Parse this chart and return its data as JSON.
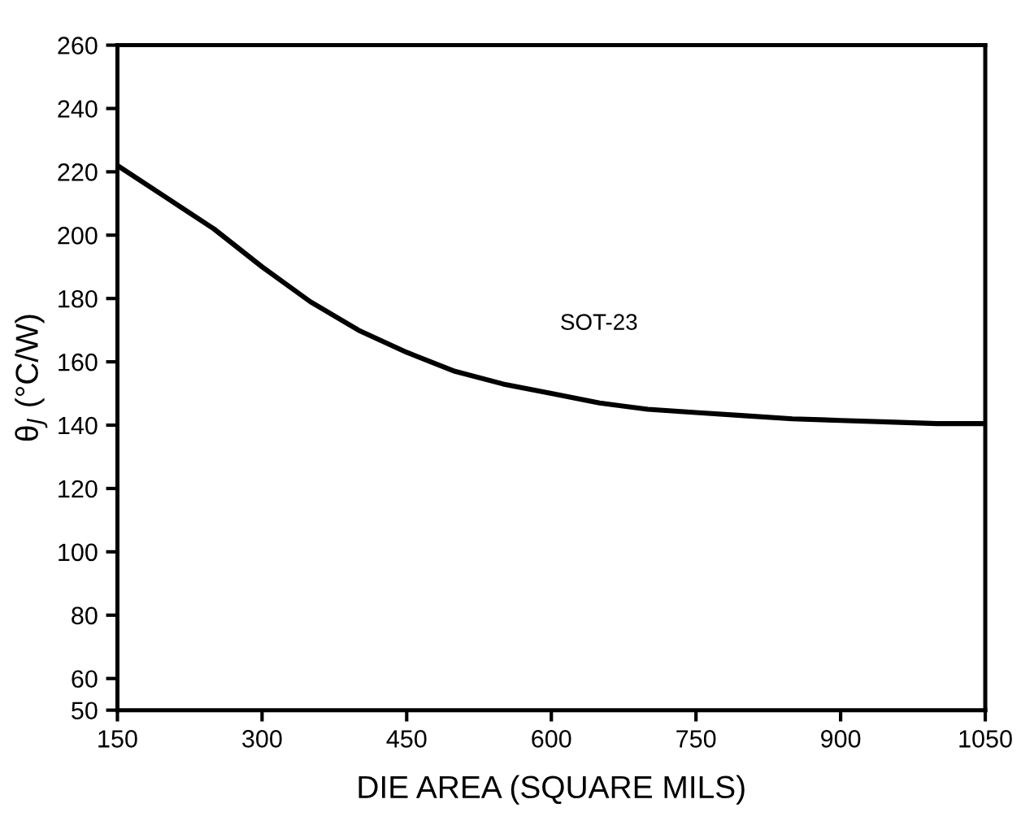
{
  "chart_data": {
    "type": "line",
    "xlabel": "DIE AREA (SQUARE MILS)",
    "ylabel": "θ$_{J}$ (°C/W)",
    "x": [
      150,
      200,
      250,
      300,
      350,
      400,
      450,
      500,
      550,
      600,
      650,
      700,
      750,
      800,
      850,
      900,
      950,
      1000,
      1050
    ],
    "series": [
      {
        "color": "#000000",
        "values": [
          222,
          212,
          202,
          190,
          179,
          170,
          163,
          157,
          153,
          150,
          147,
          145,
          144,
          143,
          142,
          141.5,
          141,
          140.5,
          140.5
        ]
      }
    ],
    "annotations": [
      "SOT-23"
    ],
    "xlim": [
      150,
      1050
    ],
    "xticks": [
      150,
      300,
      450,
      600,
      750,
      900,
      1050
    ],
    "ylim": [
      50,
      260
    ],
    "yticks": [
      50,
      60,
      80,
      100,
      120,
      140,
      160,
      180,
      200,
      220,
      240,
      260
    ],
    "grid": false,
    "marker": "none",
    "line_style": "solid"
  }
}
